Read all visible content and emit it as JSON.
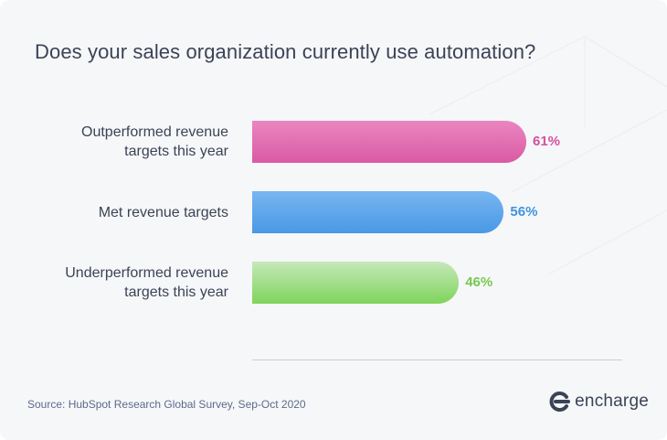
{
  "colors": {
    "bar_pink": "#d95aa4",
    "bar_blue": "#4a98e6",
    "bar_green": "#7fd45a",
    "label_pink": "#d4519d",
    "label_blue": "#3f93e0",
    "label_green": "#77c94f"
  },
  "chart_data": {
    "type": "bar",
    "orientation": "horizontal",
    "title": "Does your sales organization currently use automation?",
    "categories": [
      "Outperformed revenue targets this year",
      "Met revenue targets",
      "Underperformed revenue targets this year"
    ],
    "category_lines": [
      [
        "Outperformed revenue",
        "targets this year"
      ],
      [
        "Met revenue targets"
      ],
      [
        "Underperformed revenue",
        "targets this year"
      ]
    ],
    "values": [
      61,
      56,
      46
    ],
    "value_labels": [
      "61%",
      "56%",
      "46%"
    ],
    "unit": "%",
    "xlim": [
      0,
      100
    ],
    "grid": false,
    "legend": "none"
  },
  "footer": {
    "source": "Source: HubSpot Research Global Survey, Sep-Oct 2020",
    "brand": "encharge",
    "brand_icon": "encharge-logo-icon"
  }
}
